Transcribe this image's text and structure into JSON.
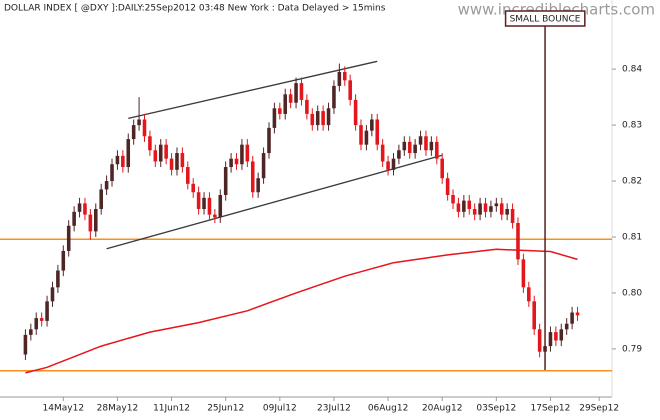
{
  "chart_data": {
    "type": "candlestick",
    "title": "DOLLAR INDEX [ @DXY ]:DAILY:25Sep2012 03:48 New York : Data Delayed > 15mins",
    "watermark": "www.incrediblecharts.com",
    "x": [
      "2012-05-03",
      "2012-05-04",
      "2012-05-07",
      "2012-05-08",
      "2012-05-09",
      "2012-05-10",
      "2012-05-11",
      "2012-05-14",
      "2012-05-15",
      "2012-05-16",
      "2012-05-17",
      "2012-05-18",
      "2012-05-21",
      "2012-05-22",
      "2012-05-23",
      "2012-05-24",
      "2012-05-25",
      "2012-05-28",
      "2012-05-29",
      "2012-05-30",
      "2012-05-31",
      "2012-06-01",
      "2012-06-04",
      "2012-06-05",
      "2012-06-06",
      "2012-06-07",
      "2012-06-08",
      "2012-06-11",
      "2012-06-12",
      "2012-06-13",
      "2012-06-14",
      "2012-06-15",
      "2012-06-18",
      "2012-06-19",
      "2012-06-20",
      "2012-06-21",
      "2012-06-22",
      "2012-06-25",
      "2012-06-26",
      "2012-06-27",
      "2012-06-28",
      "2012-06-29",
      "2012-07-02",
      "2012-07-03",
      "2012-07-04",
      "2012-07-05",
      "2012-07-06",
      "2012-07-09",
      "2012-07-10",
      "2012-07-11",
      "2012-07-12",
      "2012-07-13",
      "2012-07-16",
      "2012-07-17",
      "2012-07-18",
      "2012-07-19",
      "2012-07-20",
      "2012-07-23",
      "2012-07-24",
      "2012-07-25",
      "2012-07-26",
      "2012-07-27",
      "2012-07-30",
      "2012-07-31",
      "2012-08-01",
      "2012-08-02",
      "2012-08-03",
      "2012-08-06",
      "2012-08-07",
      "2012-08-08",
      "2012-08-09",
      "2012-08-10",
      "2012-08-13",
      "2012-08-14",
      "2012-08-15",
      "2012-08-16",
      "2012-08-17",
      "2012-08-20",
      "2012-08-21",
      "2012-08-22",
      "2012-08-23",
      "2012-08-24",
      "2012-08-27",
      "2012-08-28",
      "2012-08-29",
      "2012-08-30",
      "2012-08-31",
      "2012-09-03",
      "2012-09-04",
      "2012-09-05",
      "2012-09-06",
      "2012-09-07",
      "2012-09-10",
      "2012-09-11",
      "2012-09-12",
      "2012-09-13",
      "2012-09-14",
      "2012-09-17",
      "2012-09-18",
      "2012-09-19",
      "2012-09-20",
      "2012-09-21",
      "2012-09-24"
    ],
    "open": [
      0.789,
      0.7925,
      0.7935,
      0.7955,
      0.795,
      0.7985,
      0.801,
      0.804,
      0.8075,
      0.812,
      0.8145,
      0.816,
      0.814,
      0.811,
      0.815,
      0.8185,
      0.82,
      0.823,
      0.8245,
      0.8225,
      0.8275,
      0.83,
      0.831,
      0.828,
      0.8255,
      0.8235,
      0.8265,
      0.824,
      0.822,
      0.825,
      0.8225,
      0.8195,
      0.818,
      0.815,
      0.817,
      0.814,
      0.8135,
      0.8175,
      0.8225,
      0.824,
      0.823,
      0.8265,
      0.8235,
      0.818,
      0.8205,
      0.825,
      0.8295,
      0.833,
      0.832,
      0.8355,
      0.834,
      0.8375,
      0.8345,
      0.832,
      0.83,
      0.8325,
      0.83,
      0.833,
      0.837,
      0.8395,
      0.838,
      0.8345,
      0.83,
      0.8265,
      0.829,
      0.831,
      0.8265,
      0.8235,
      0.822,
      0.824,
      0.8255,
      0.827,
      0.825,
      0.8265,
      0.828,
      0.8255,
      0.827,
      0.824,
      0.8205,
      0.8175,
      0.816,
      0.8145,
      0.8165,
      0.815,
      0.814,
      0.816,
      0.8145,
      0.8155,
      0.816,
      0.814,
      0.815,
      0.8125,
      0.806,
      0.801,
      0.7985,
      0.7935,
      0.7895,
      0.7905,
      0.793,
      0.7915,
      0.7935,
      0.7945,
      0.7965
    ],
    "high": [
      0.7935,
      0.7945,
      0.7965,
      0.7965,
      0.7995,
      0.802,
      0.805,
      0.8085,
      0.813,
      0.8155,
      0.817,
      0.817,
      0.815,
      0.816,
      0.8195,
      0.821,
      0.824,
      0.8255,
      0.8255,
      0.8285,
      0.831,
      0.835,
      0.832,
      0.829,
      0.8265,
      0.8275,
      0.8275,
      0.825,
      0.826,
      0.826,
      0.8235,
      0.8205,
      0.819,
      0.818,
      0.818,
      0.815,
      0.8185,
      0.8235,
      0.825,
      0.825,
      0.8275,
      0.8275,
      0.8245,
      0.8215,
      0.826,
      0.8305,
      0.834,
      0.834,
      0.8365,
      0.8365,
      0.8385,
      0.8385,
      0.8355,
      0.833,
      0.8335,
      0.8335,
      0.834,
      0.838,
      0.841,
      0.8405,
      0.839,
      0.8355,
      0.831,
      0.83,
      0.832,
      0.832,
      0.8275,
      0.8245,
      0.825,
      0.8265,
      0.828,
      0.828,
      0.8275,
      0.829,
      0.829,
      0.828,
      0.828,
      0.825,
      0.8215,
      0.8185,
      0.817,
      0.8175,
      0.8175,
      0.816,
      0.817,
      0.817,
      0.8165,
      0.817,
      0.817,
      0.816,
      0.816,
      0.8135,
      0.807,
      0.802,
      0.7995,
      0.7945,
      0.7915,
      0.794,
      0.794,
      0.7945,
      0.7955,
      0.7975,
      0.7975
    ],
    "low": [
      0.788,
      0.7915,
      0.7925,
      0.794,
      0.794,
      0.7975,
      0.8,
      0.803,
      0.8065,
      0.811,
      0.8135,
      0.813,
      0.8095,
      0.81,
      0.814,
      0.8175,
      0.819,
      0.822,
      0.8215,
      0.8215,
      0.8265,
      0.829,
      0.827,
      0.8245,
      0.8225,
      0.8225,
      0.823,
      0.821,
      0.821,
      0.8215,
      0.8185,
      0.817,
      0.814,
      0.814,
      0.813,
      0.8125,
      0.8125,
      0.8165,
      0.8215,
      0.822,
      0.822,
      0.8225,
      0.817,
      0.817,
      0.8195,
      0.824,
      0.8285,
      0.831,
      0.831,
      0.833,
      0.833,
      0.8335,
      0.831,
      0.829,
      0.829,
      0.829,
      0.829,
      0.832,
      0.836,
      0.837,
      0.8335,
      0.829,
      0.8255,
      0.8255,
      0.828,
      0.8255,
      0.8225,
      0.821,
      0.821,
      0.823,
      0.8245,
      0.824,
      0.824,
      0.8255,
      0.8245,
      0.8245,
      0.823,
      0.8195,
      0.8165,
      0.815,
      0.8135,
      0.8135,
      0.814,
      0.813,
      0.813,
      0.8135,
      0.8135,
      0.8145,
      0.813,
      0.813,
      0.8115,
      0.805,
      0.8,
      0.7975,
      0.7925,
      0.7885,
      0.7865,
      0.7895,
      0.7905,
      0.7905,
      0.7925,
      0.7935,
      0.795
    ],
    "close": [
      0.7925,
      0.7935,
      0.7955,
      0.795,
      0.7985,
      0.801,
      0.804,
      0.8075,
      0.812,
      0.8145,
      0.816,
      0.814,
      0.811,
      0.815,
      0.8185,
      0.82,
      0.823,
      0.8245,
      0.8225,
      0.8275,
      0.83,
      0.831,
      0.828,
      0.8255,
      0.8235,
      0.8265,
      0.824,
      0.822,
      0.825,
      0.8225,
      0.8195,
      0.818,
      0.815,
      0.817,
      0.814,
      0.8135,
      0.8175,
      0.8225,
      0.824,
      0.823,
      0.8265,
      0.8235,
      0.818,
      0.8205,
      0.825,
      0.8295,
      0.833,
      0.832,
      0.8355,
      0.834,
      0.8375,
      0.8345,
      0.832,
      0.83,
      0.8325,
      0.83,
      0.833,
      0.837,
      0.8395,
      0.838,
      0.8345,
      0.83,
      0.8265,
      0.829,
      0.831,
      0.8265,
      0.8235,
      0.822,
      0.824,
      0.8255,
      0.827,
      0.825,
      0.8265,
      0.828,
      0.8255,
      0.827,
      0.824,
      0.8205,
      0.8175,
      0.816,
      0.8145,
      0.8165,
      0.815,
      0.814,
      0.816,
      0.8145,
      0.8155,
      0.816,
      0.814,
      0.815,
      0.8125,
      0.806,
      0.801,
      0.7985,
      0.7935,
      0.7895,
      0.7905,
      0.793,
      0.7915,
      0.7935,
      0.7945,
      0.7965,
      0.796
    ],
    "up_color": "#4f2626",
    "down_color": "#e3161c",
    "moving_average": {
      "color": "#e8141a",
      "x": [
        "2012-05-03",
        "2012-05-09",
        "2012-05-23",
        "2012-06-05",
        "2012-06-18",
        "2012-06-29",
        "2012-07-12",
        "2012-07-25",
        "2012-08-07",
        "2012-08-21",
        "2012-09-03",
        "2012-09-17",
        "2012-09-24"
      ],
      "values": [
        0.7857,
        0.7867,
        0.7905,
        0.793,
        0.7947,
        0.7968,
        0.8,
        0.803,
        0.8054,
        0.8068,
        0.8078,
        0.8074,
        0.806
      ]
    },
    "trend_lines": [
      {
        "x": [
          "2012-05-30",
          "2012-08-02"
        ],
        "values": [
          0.8312,
          0.8414
        ],
        "color": "#3a3a3a"
      },
      {
        "x": [
          "2012-05-24",
          "2012-08-20"
        ],
        "values": [
          0.8079,
          0.8246
        ],
        "color": "#3a3a3a"
      }
    ],
    "levels": [
      {
        "value": 0.8096,
        "color": "#f7901e"
      },
      {
        "value": 0.7861,
        "color": "#f7901e"
      }
    ],
    "annotation": {
      "text": "SMALL BOUNCE",
      "x": "2012-09-14",
      "color": "#5b1f1f"
    },
    "xlim": [
      "2012-05-02",
      "2012-10-02"
    ],
    "xticks": [
      {
        "value": "2012-05-14",
        "label": "14May12"
      },
      {
        "value": "2012-05-28",
        "label": "28May12"
      },
      {
        "value": "2012-06-11",
        "label": "11Jun12"
      },
      {
        "value": "2012-06-25",
        "label": "25Jun12"
      },
      {
        "value": "2012-07-09",
        "label": "09Jul12"
      },
      {
        "value": "2012-07-23",
        "label": "23Jul12"
      },
      {
        "value": "2012-08-06",
        "label": "06Aug12"
      },
      {
        "value": "2012-08-20",
        "label": "20Aug12"
      },
      {
        "value": "2012-09-03",
        "label": "03Sep12"
      },
      {
        "value": "2012-09-17",
        "label": "17Sep12"
      },
      {
        "value": "2012-09-29",
        "label": "29Sep12"
      }
    ],
    "ylim": [
      0.7814,
      0.852
    ],
    "yticks": [
      0.79,
      {
        "value": 0.8,
        "label": "0.80"
      },
      0.81,
      0.82,
      0.83,
      0.84
    ]
  }
}
